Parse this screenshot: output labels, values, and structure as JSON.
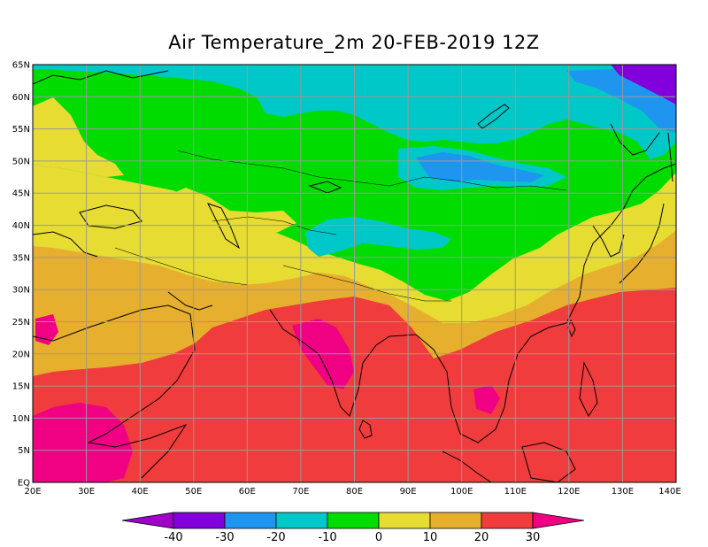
{
  "title": "Air Temperature_2m 20-FEB-2019 12Z",
  "map": {
    "lon_range": [
      20,
      140
    ],
    "lat_range": [
      0,
      65
    ],
    "lat_labels": [
      "EQ",
      "5N",
      "10N",
      "15N",
      "20N",
      "25N",
      "30N",
      "35N",
      "40N",
      "45N",
      "50N",
      "55N",
      "60N",
      "65N"
    ],
    "lon_labels": [
      "20E",
      "30E",
      "40E",
      "50E",
      "60E",
      "70E",
      "80E",
      "90E",
      "100E",
      "110E",
      "120E",
      "130E",
      "140E"
    ],
    "grid": true
  },
  "colorbar": {
    "labels": [
      "-40",
      "-30",
      "-20",
      "-10",
      "0",
      "10",
      "20",
      "30"
    ],
    "colors": {
      "below_-40": "#a000c8",
      "-40_-30": "#8200dc",
      "-30_-20": "#1e96f0",
      "-20_-10": "#00c8c8",
      "-10_0": "#00dc00",
      "0_10": "#e6dc32",
      "10_20": "#e6af2d",
      "20_30": "#f03c3c",
      "above_30": "#f00082"
    }
  }
}
